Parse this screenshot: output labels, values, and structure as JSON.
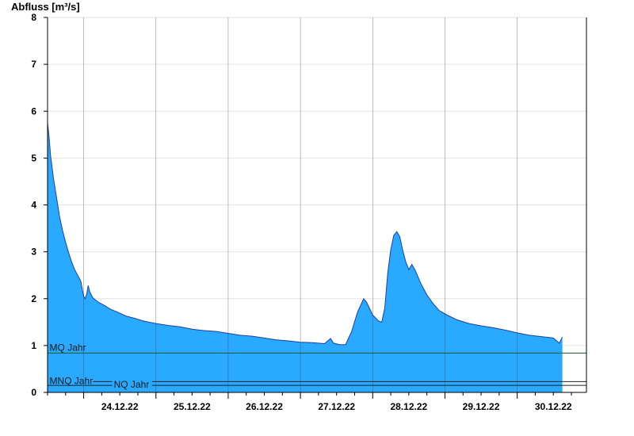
{
  "chart_data": {
    "type": "area",
    "ylabel": "Abfluss [m³/s]",
    "ylim": [
      0,
      8
    ],
    "yticks": [
      0,
      1,
      2,
      3,
      4,
      5,
      6,
      7,
      8
    ],
    "xlim": [
      "2022-12-23T12:00",
      "2022-12-30T23:00"
    ],
    "xtick_labels": [
      "24.12.22",
      "25.12.22",
      "26.12.22",
      "27.12.22",
      "28.12.22",
      "29.12.22",
      "30.12.22"
    ],
    "grid": true,
    "fill_color": "#29a9ff",
    "line_color": "#1f3fa0",
    "series": [
      {
        "values": [
          [
            "2022-12-23T12:00",
            5.75
          ],
          [
            "2022-12-23T12:30",
            5.45
          ],
          [
            "2022-12-23T13:00",
            5.05
          ],
          [
            "2022-12-23T14:00",
            4.55
          ],
          [
            "2022-12-23T15:00",
            4.15
          ],
          [
            "2022-12-23T16:00",
            3.75
          ],
          [
            "2022-12-23T17:00",
            3.45
          ],
          [
            "2022-12-23T18:00",
            3.2
          ],
          [
            "2022-12-23T19:00",
            2.98
          ],
          [
            "2022-12-23T20:00",
            2.78
          ],
          [
            "2022-12-23T21:00",
            2.62
          ],
          [
            "2022-12-23T22:00",
            2.5
          ],
          [
            "2022-12-23T23:00",
            2.38
          ],
          [
            "2022-12-24T00:00",
            2.05
          ],
          [
            "2022-12-24T00:30",
            2.0
          ],
          [
            "2022-12-24T01:00",
            2.1
          ],
          [
            "2022-12-24T01:30",
            2.28
          ],
          [
            "2022-12-24T02:00",
            2.15
          ],
          [
            "2022-12-24T03:00",
            2.02
          ],
          [
            "2022-12-24T05:00",
            1.92
          ],
          [
            "2022-12-24T07:00",
            1.85
          ],
          [
            "2022-12-24T09:00",
            1.77
          ],
          [
            "2022-12-24T11:00",
            1.72
          ],
          [
            "2022-12-24T14:00",
            1.63
          ],
          [
            "2022-12-24T17:00",
            1.58
          ],
          [
            "2022-12-24T20:00",
            1.52
          ],
          [
            "2022-12-25T00:00",
            1.47
          ],
          [
            "2022-12-25T04:00",
            1.43
          ],
          [
            "2022-12-25T08:00",
            1.4
          ],
          [
            "2022-12-25T12:00",
            1.35
          ],
          [
            "2022-12-25T16:00",
            1.32
          ],
          [
            "2022-12-25T20:00",
            1.3
          ],
          [
            "2022-12-26T00:00",
            1.26
          ],
          [
            "2022-12-26T04:00",
            1.22
          ],
          [
            "2022-12-26T08:00",
            1.2
          ],
          [
            "2022-12-26T12:00",
            1.16
          ],
          [
            "2022-12-26T16:00",
            1.12
          ],
          [
            "2022-12-26T20:00",
            1.1
          ],
          [
            "2022-12-27T00:00",
            1.07
          ],
          [
            "2022-12-27T04:00",
            1.06
          ],
          [
            "2022-12-27T08:00",
            1.04
          ],
          [
            "2022-12-27T10:00",
            1.15
          ],
          [
            "2022-12-27T11:00",
            1.05
          ],
          [
            "2022-12-27T13:00",
            1.02
          ],
          [
            "2022-12-27T15:00",
            1.02
          ],
          [
            "2022-12-27T17:00",
            1.3
          ],
          [
            "2022-12-27T19:00",
            1.72
          ],
          [
            "2022-12-27T21:00",
            2.0
          ],
          [
            "2022-12-27T22:00",
            1.92
          ],
          [
            "2022-12-28T00:00",
            1.65
          ],
          [
            "2022-12-28T02:00",
            1.52
          ],
          [
            "2022-12-28T03:00",
            1.5
          ],
          [
            "2022-12-28T04:00",
            1.8
          ],
          [
            "2022-12-28T05:00",
            2.55
          ],
          [
            "2022-12-28T06:00",
            3.05
          ],
          [
            "2022-12-28T07:00",
            3.35
          ],
          [
            "2022-12-28T08:00",
            3.43
          ],
          [
            "2022-12-28T09:00",
            3.32
          ],
          [
            "2022-12-28T10:00",
            3.02
          ],
          [
            "2022-12-28T11:00",
            2.78
          ],
          [
            "2022-12-28T12:00",
            2.62
          ],
          [
            "2022-12-28T13:00",
            2.73
          ],
          [
            "2022-12-28T14:00",
            2.62
          ],
          [
            "2022-12-28T16:00",
            2.32
          ],
          [
            "2022-12-28T18:00",
            2.08
          ],
          [
            "2022-12-28T20:00",
            1.9
          ],
          [
            "2022-12-28T22:00",
            1.75
          ],
          [
            "2022-12-29T01:00",
            1.64
          ],
          [
            "2022-12-29T04:00",
            1.55
          ],
          [
            "2022-12-29T08:00",
            1.47
          ],
          [
            "2022-12-29T12:00",
            1.42
          ],
          [
            "2022-12-29T16:00",
            1.38
          ],
          [
            "2022-12-29T20:00",
            1.33
          ],
          [
            "2022-12-30T00:00",
            1.27
          ],
          [
            "2022-12-30T04:00",
            1.22
          ],
          [
            "2022-12-30T08:00",
            1.19
          ],
          [
            "2022-12-30T12:00",
            1.16
          ],
          [
            "2022-12-30T14:00",
            1.05
          ],
          [
            "2022-12-30T15:00",
            1.18
          ]
        ]
      }
    ],
    "reference_lines": [
      {
        "label": "MQ Jahr",
        "value": 0.84,
        "label_x": "2022-12-23T12:40"
      },
      {
        "label": "MNQ Jahr",
        "value": 0.23,
        "label_x": "2022-12-23T12:40"
      },
      {
        "label": "NQ Jahr",
        "value": 0.15,
        "label_x": "2022-12-24T10:00"
      }
    ]
  }
}
